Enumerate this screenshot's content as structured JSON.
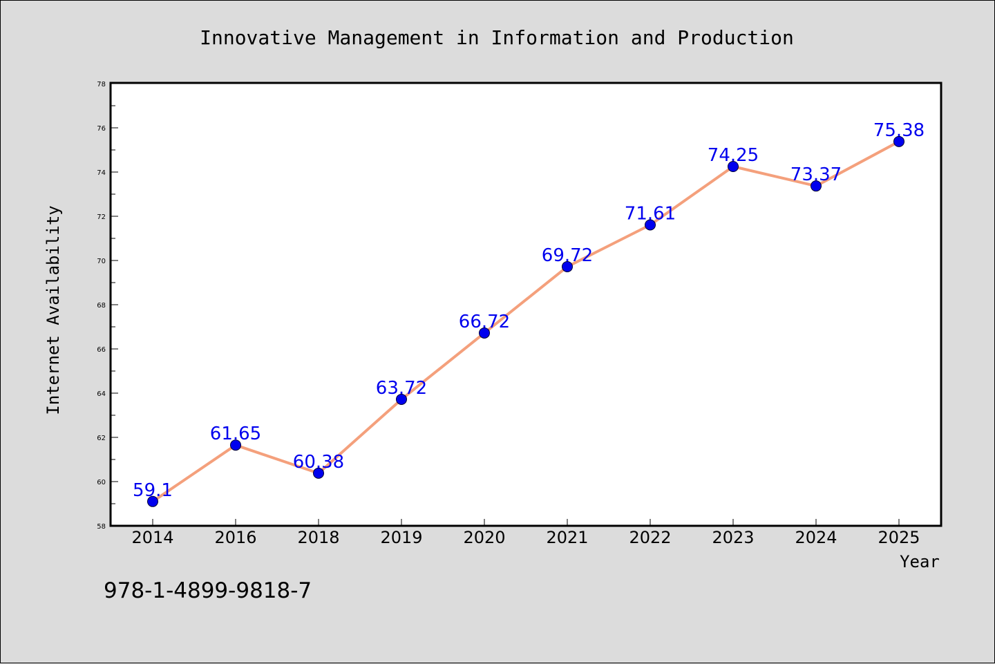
{
  "chart_data": {
    "type": "line",
    "title": "Innovative Management in Information and Production",
    "xlabel": "Year",
    "ylabel": "Internet Availability",
    "categories": [
      "2014",
      "2016",
      "2018",
      "2019",
      "2020",
      "2021",
      "2022",
      "2023",
      "2024",
      "2025"
    ],
    "series": [
      {
        "values": [
          59.1,
          61.65,
          60.38,
          63.72,
          66.72,
          69.72,
          71.61,
          74.25,
          73.37,
          75.38
        ],
        "labels": [
          "59.1",
          "61.65",
          "60.38",
          "63.72",
          "66.72",
          "69.72",
          "71.61",
          "74.25",
          "73.37",
          "75.38"
        ],
        "line_color": "#f4a07c",
        "marker_color": "#0000ee",
        "label_color": "#0000ee"
      }
    ],
    "ylim": [
      58,
      78
    ],
    "yticks": [
      58,
      60,
      62,
      64,
      66,
      68,
      70,
      72,
      74,
      76,
      78
    ],
    "grid": false,
    "legend": "none"
  },
  "footer": {
    "isbn": "978-1-4899-9818-7"
  }
}
